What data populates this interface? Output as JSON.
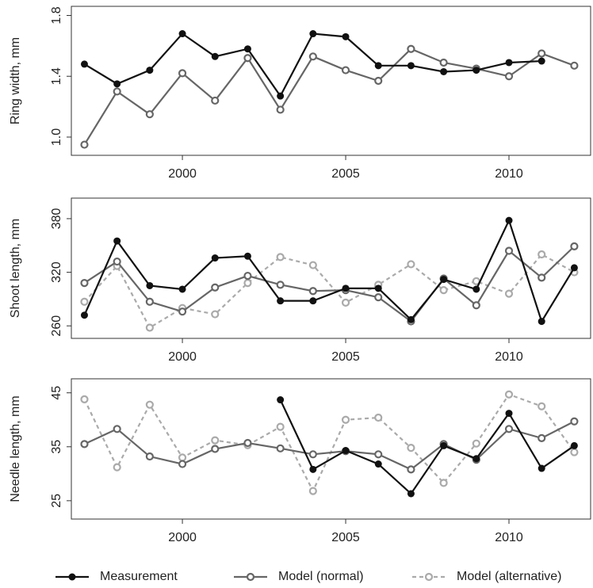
{
  "chart_data": [
    {
      "type": "line",
      "y_label": "Ring width, mm",
      "x": [
        1997,
        1998,
        1999,
        2000,
        2001,
        2002,
        2003,
        2004,
        2005,
        2006,
        2007,
        2008,
        2009,
        2010,
        2011,
        2012
      ],
      "xlim": [
        1996.6,
        2012.5
      ],
      "xticks": [
        2000,
        2005,
        2010
      ],
      "ylim": [
        0.88,
        1.86
      ],
      "yticks": [
        {
          "value": 1,
          "label": "1.0"
        },
        1.4,
        1.8
      ],
      "series": [
        {
          "color": "#111111",
          "line_style": "solid",
          "marker": "filled",
          "values": [
            1.48,
            1.35,
            1.44,
            1.68,
            1.53,
            1.58,
            1.27,
            1.68,
            1.66,
            1.47,
            1.47,
            1.43,
            1.44,
            1.49,
            1.5,
            null
          ]
        },
        {
          "color": "#666666",
          "line_style": "solid",
          "marker": "open",
          "values": [
            0.95,
            1.3,
            1.15,
            1.42,
            1.24,
            1.52,
            1.18,
            1.53,
            1.44,
            1.37,
            1.58,
            1.49,
            1.45,
            1.4,
            1.55,
            1.47
          ]
        }
      ]
    },
    {
      "type": "line",
      "y_label": "Shoot length, mm",
      "x": [
        1997,
        1998,
        1999,
        2000,
        2001,
        2002,
        2003,
        2004,
        2005,
        2006,
        2007,
        2008,
        2009,
        2010,
        2011,
        2012
      ],
      "xlim": [
        1996.6,
        2012.5
      ],
      "xticks": [
        2000,
        2005,
        2010
      ],
      "ylim": [
        246,
        403
      ],
      "yticks": [
        260,
        320,
        380
      ],
      "series": [
        {
          "name": "Measurement",
          "color": "#111111",
          "line_style": "solid",
          "marker": "filled",
          "values": [
            272,
            355,
            305,
            301,
            336,
            338,
            288,
            288,
            302,
            302,
            267,
            312,
            301,
            378,
            265,
            325
          ]
        },
        {
          "name": "Model (normal)",
          "color": "#666666",
          "line_style": "solid",
          "marker": "open",
          "values": [
            308,
            332,
            287,
            276,
            303,
            316,
            306,
            299,
            300,
            292,
            265,
            313,
            283,
            344,
            314,
            349
          ]
        },
        {
          "name": "Model (alternative)",
          "color": "#aaaaaa",
          "line_style": "dashed",
          "marker": "open",
          "values": [
            287,
            327,
            258,
            280,
            273,
            308,
            337,
            328,
            286,
            306,
            329,
            300,
            310,
            296,
            340,
            320
          ]
        }
      ]
    },
    {
      "type": "line",
      "y_label": "Needle length, mm",
      "x": [
        1997,
        1998,
        1999,
        2000,
        2001,
        2002,
        2003,
        2004,
        2005,
        2006,
        2007,
        2008,
        2009,
        2010,
        2011,
        2012
      ],
      "xlim": [
        1996.6,
        2012.5
      ],
      "xticks": [
        2000,
        2005,
        2010
      ],
      "ylim": [
        21.6,
        47.6
      ],
      "yticks": [
        25,
        35,
        45
      ],
      "series": [
        {
          "color": "#111111",
          "line_style": "solid",
          "marker": "filled",
          "values": [
            null,
            null,
            null,
            null,
            null,
            null,
            43.7,
            30.8,
            34.3,
            31.8,
            26.3,
            35.2,
            32.8,
            41.2,
            31.0,
            35.2
          ]
        },
        {
          "color": "#666666",
          "line_style": "solid",
          "marker": "open",
          "values": [
            35.5,
            38.3,
            33.2,
            31.8,
            34.6,
            35.7,
            34.7,
            33.6,
            34.2,
            33.6,
            30.8,
            35.5,
            32.6,
            38.3,
            36.6,
            39.7
          ]
        },
        {
          "color": "#aaaaaa",
          "line_style": "dashed",
          "marker": "open",
          "values": [
            43.8,
            31.2,
            42.8,
            33.0,
            36.2,
            35.3,
            38.7,
            26.8,
            40.0,
            40.4,
            34.8,
            28.3,
            35.6,
            44.7,
            42.5,
            34.0
          ]
        }
      ]
    }
  ]
}
